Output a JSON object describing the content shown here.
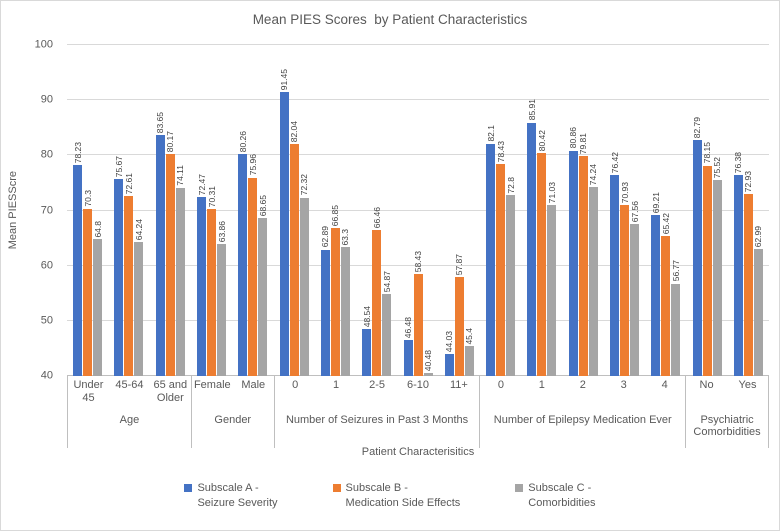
{
  "chart_data": {
    "type": "bar",
    "title": "Mean PIES Scores  by Patient Characteristics",
    "xlabel": "Patient Characterisitics",
    "ylabel": "Mean PIESScre",
    "ylim": [
      40,
      100
    ],
    "yticks": [
      40,
      50,
      60,
      70,
      80,
      90,
      100
    ],
    "grid": true,
    "legend_position": "bottom",
    "colors": {
      "axis_text": "#595959",
      "gridline": "#D9D9D9",
      "axis_line": "#BFBFBF"
    },
    "groups": [
      {
        "label": "Age",
        "categories": [
          "Under 45",
          "45-64",
          "65 and Older"
        ]
      },
      {
        "label": "Gender",
        "categories": [
          "Female",
          "Male"
        ]
      },
      {
        "label": "Number of Seizures in Past 3 Months",
        "categories": [
          "0",
          "1",
          "2-5",
          "6-10",
          "11+"
        ]
      },
      {
        "label": "Number of Epilepsy Medication Ever",
        "categories": [
          "0",
          "1",
          "2",
          "3",
          "4"
        ]
      },
      {
        "label": "Psychiatric Comorbidities",
        "categories": [
          "No",
          "Yes"
        ]
      }
    ],
    "series": [
      {
        "id": "subscale-a",
        "name": "Subscale A - Seizure Severity",
        "legend_lines": [
          "Subscale A -",
          "Seizure Severity"
        ],
        "color": "#4472C4",
        "values": [
          78.23,
          75.67,
          83.65,
          72.47,
          80.26,
          91.45,
          62.89,
          48.54,
          46.48,
          44.03,
          82.1,
          85.91,
          80.86,
          76.42,
          69.21,
          82.79,
          76.38
        ]
      },
      {
        "id": "subscale-b",
        "name": "Subscale B - Medication Side Effects",
        "legend_lines": [
          "Subscale B -",
          "Medication Side Effects"
        ],
        "color": "#ED7D31",
        "values": [
          70.3,
          72.61,
          80.17,
          70.31,
          75.96,
          82.04,
          66.85,
          66.46,
          58.43,
          57.87,
          78.43,
          80.42,
          79.81,
          70.93,
          65.42,
          78.15,
          72.93
        ]
      },
      {
        "id": "subscale-c",
        "name": "Subscale C - Comorbidities",
        "legend_lines": [
          "Subscale C -",
          "Comorbidities"
        ],
        "color": "#A5A5A5",
        "values": [
          64.8,
          64.24,
          74.11,
          63.86,
          68.65,
          72.32,
          63.3,
          54.87,
          40.48,
          45.4,
          72.8,
          71.03,
          74.24,
          67.56,
          56.77,
          75.52,
          62.99
        ]
      }
    ]
  }
}
